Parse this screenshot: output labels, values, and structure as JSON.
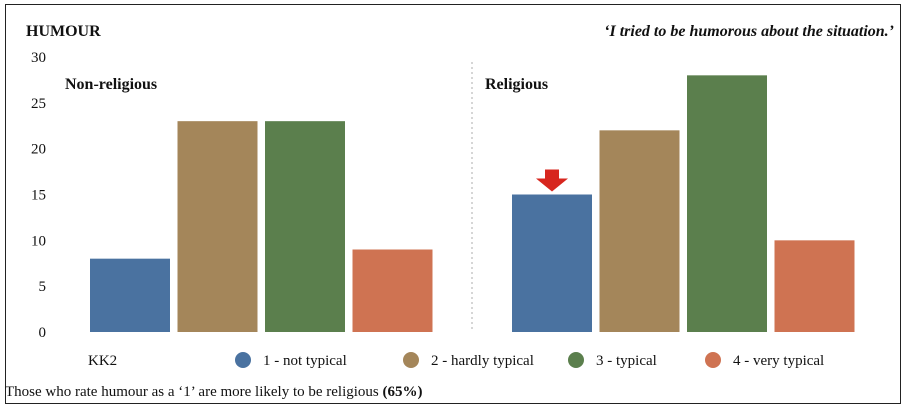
{
  "header": {
    "title": "HUMOUR",
    "quote": "‘I tried to be humorous about the situation.’"
  },
  "caption": {
    "text": "Those who rate humour as a ‘1’ are more likely to be religious ",
    "emphasis": "(65%)"
  },
  "chart_data": {
    "type": "bar",
    "title": "HUMOUR",
    "subtitle": "‘I tried to be humorous about the situation.’",
    "legend_title": "KK2",
    "legend_position": "bottom",
    "ylim": [
      0,
      30
    ],
    "yticks": [
      0,
      5,
      10,
      15,
      20,
      25,
      30
    ],
    "grid": false,
    "groups": [
      "Non-religious",
      "Religious"
    ],
    "series": [
      {
        "name": "1 - not typical",
        "color": "#4A72A0",
        "values": [
          8,
          15
        ]
      },
      {
        "name": "2 - hardly typical",
        "color": "#A4865A",
        "values": [
          23,
          22
        ]
      },
      {
        "name": "3 - typical",
        "color": "#5B7F4D",
        "values": [
          23,
          28
        ]
      },
      {
        "name": "4 - very typical",
        "color": "#CF7352",
        "values": [
          9,
          10
        ]
      }
    ],
    "annotation": {
      "type": "arrow",
      "group": "Religious",
      "series": "1 - not typical",
      "color": "#D7261E"
    }
  }
}
